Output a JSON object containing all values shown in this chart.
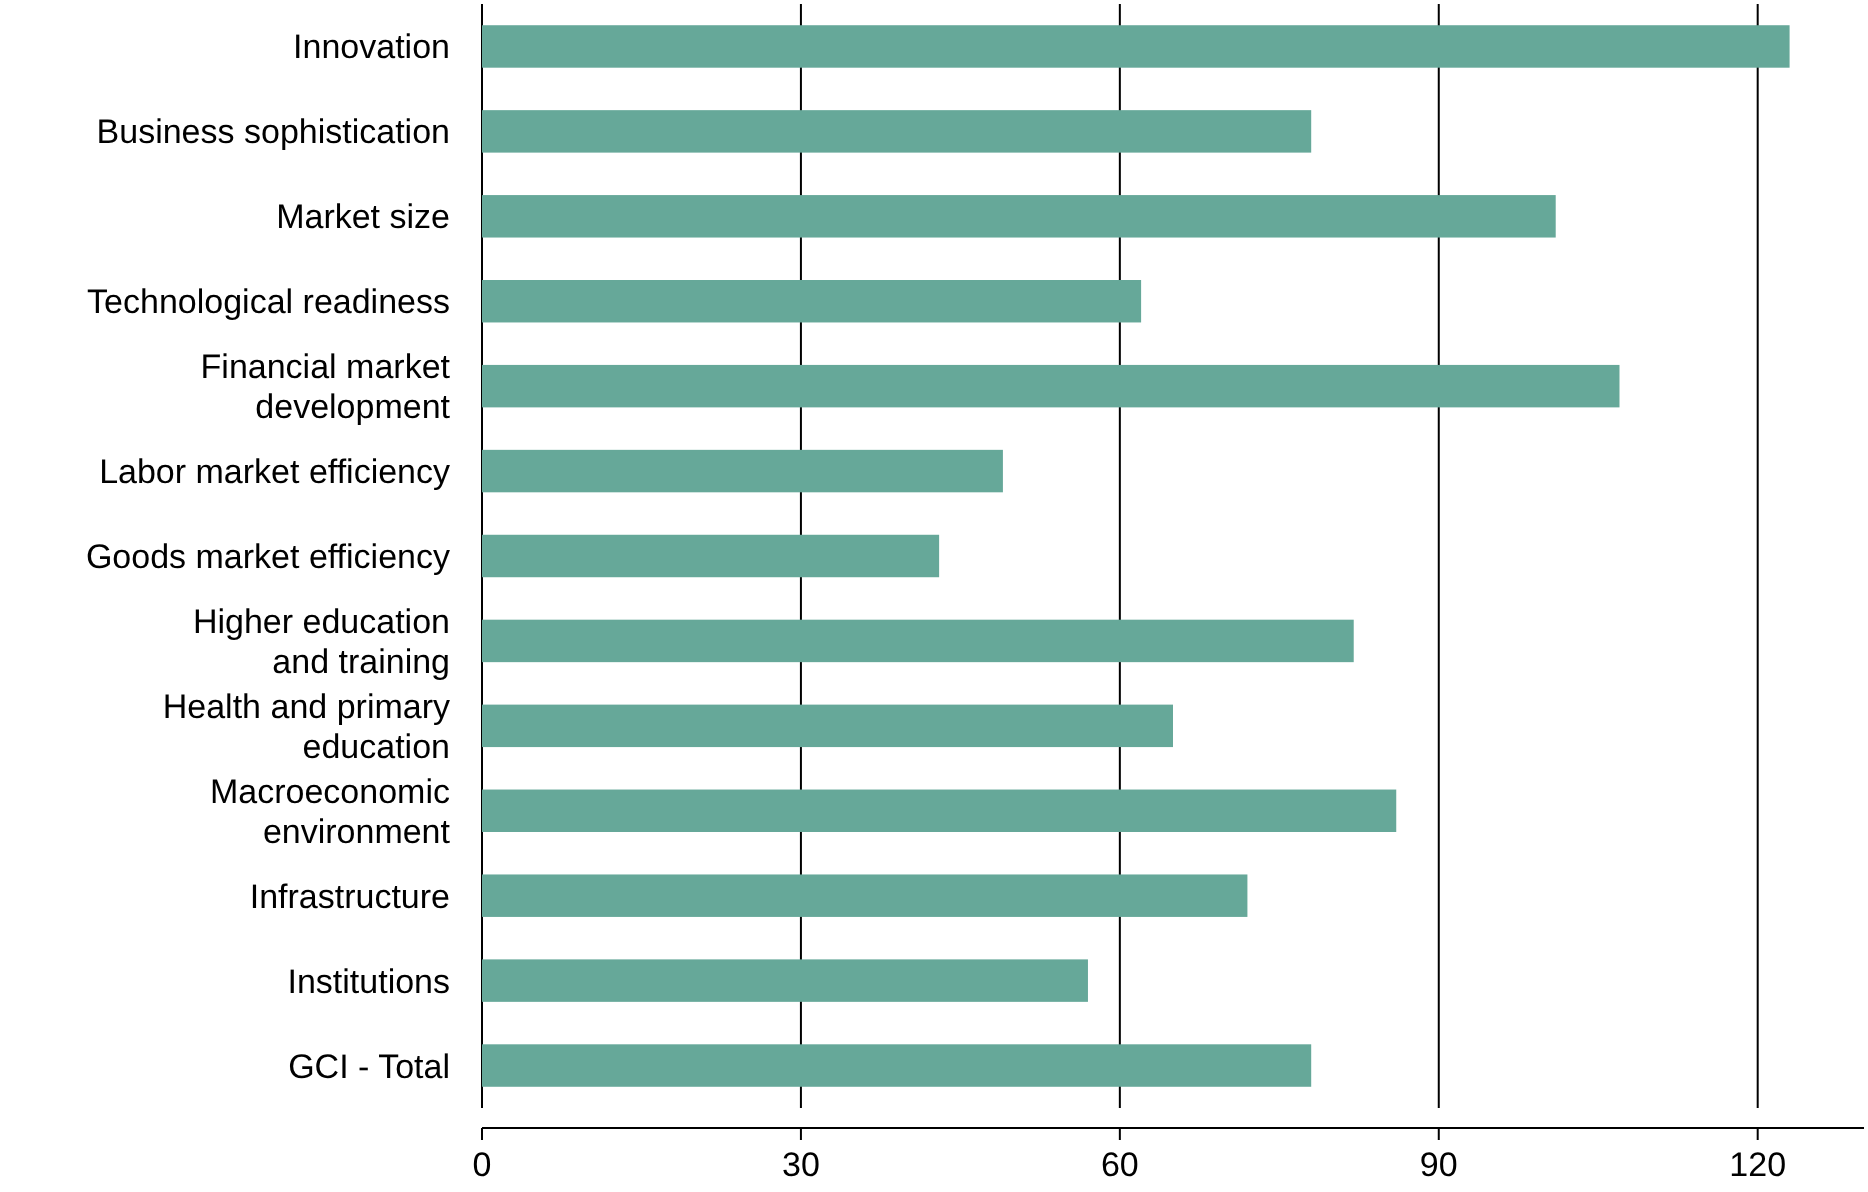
{
  "chart_data": {
    "type": "bar",
    "orientation": "horizontal",
    "categories": [
      "Innovation",
      "Business sophistication",
      "Market size",
      "Technological readiness",
      "Financial market development",
      "Labor market efficiency",
      "Goods market efficiency",
      "Higher education and training",
      "Health and primary education",
      "Macroeconomic environment",
      "Infrastructure",
      "Institutions",
      "GCI - Total"
    ],
    "values": [
      123,
      78,
      101,
      62,
      107,
      49,
      43,
      82,
      65,
      86,
      72,
      57,
      78
    ],
    "color": "#66a899",
    "xlim": [
      0,
      130
    ],
    "xticks": [
      0,
      30,
      60,
      90,
      120
    ],
    "grid": "x"
  }
}
